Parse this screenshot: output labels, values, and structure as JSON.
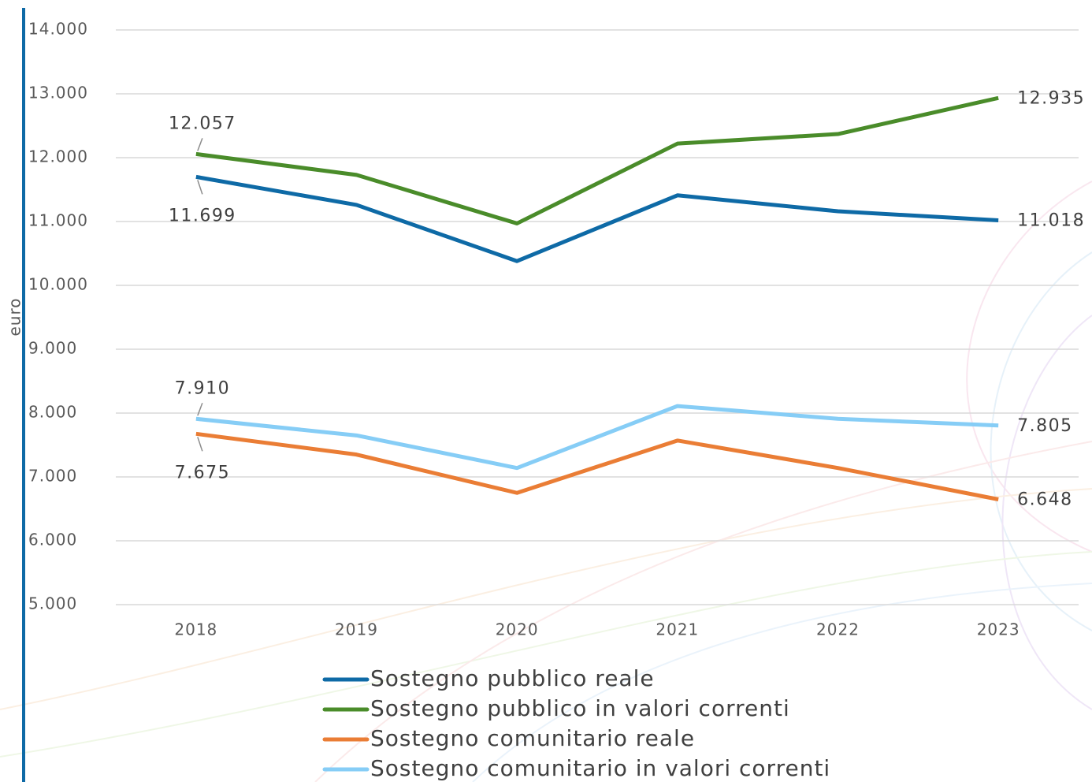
{
  "chart_data": {
    "type": "line",
    "y_label": "euro",
    "categories": [
      "2018",
      "2019",
      "2020",
      "2021",
      "2022",
      "2023"
    ],
    "ylim": [
      5000,
      14000
    ],
    "yticks": [
      {
        "value": 5000,
        "label": "5.000"
      },
      {
        "value": 6000,
        "label": "6.000"
      },
      {
        "value": 7000,
        "label": "7.000"
      },
      {
        "value": 8000,
        "label": "8.000"
      },
      {
        "value": 9000,
        "label": "9.000"
      },
      {
        "value": 10000,
        "label": "10.000"
      },
      {
        "value": 11000,
        "label": "11.000"
      },
      {
        "value": 12000,
        "label": "12.000"
      },
      {
        "value": 13000,
        "label": "13.000"
      },
      {
        "value": 14000,
        "label": "14.000"
      }
    ],
    "grid": true,
    "series": [
      {
        "name": "Sostegno pubblico reale",
        "color": "#0e6aa6",
        "values": [
          11699,
          11260,
          10380,
          11410,
          11160,
          11018
        ],
        "value_labels": [
          "11.699",
          null,
          null,
          null,
          null,
          "11.018"
        ]
      },
      {
        "name": "Sostegno pubblico in valori correnti",
        "color": "#4a8c2a",
        "values": [
          12057,
          11730,
          10970,
          12220,
          12370,
          12935
        ],
        "value_labels": [
          "12.057",
          null,
          null,
          null,
          null,
          "12.935"
        ]
      },
      {
        "name": "Sostegno comunitario reale",
        "color": "#ea7d35",
        "values": [
          7675,
          7350,
          6750,
          7570,
          7140,
          6648
        ],
        "value_labels": [
          "7.675",
          null,
          null,
          null,
          null,
          "6.648"
        ]
      },
      {
        "name": "Sostegno comunitario in valori correnti",
        "color": "#86cdf6",
        "values": [
          7910,
          7650,
          7140,
          8110,
          7910,
          7805
        ],
        "value_labels": [
          "7.910",
          null,
          null,
          null,
          null,
          "7.805"
        ]
      }
    ]
  }
}
